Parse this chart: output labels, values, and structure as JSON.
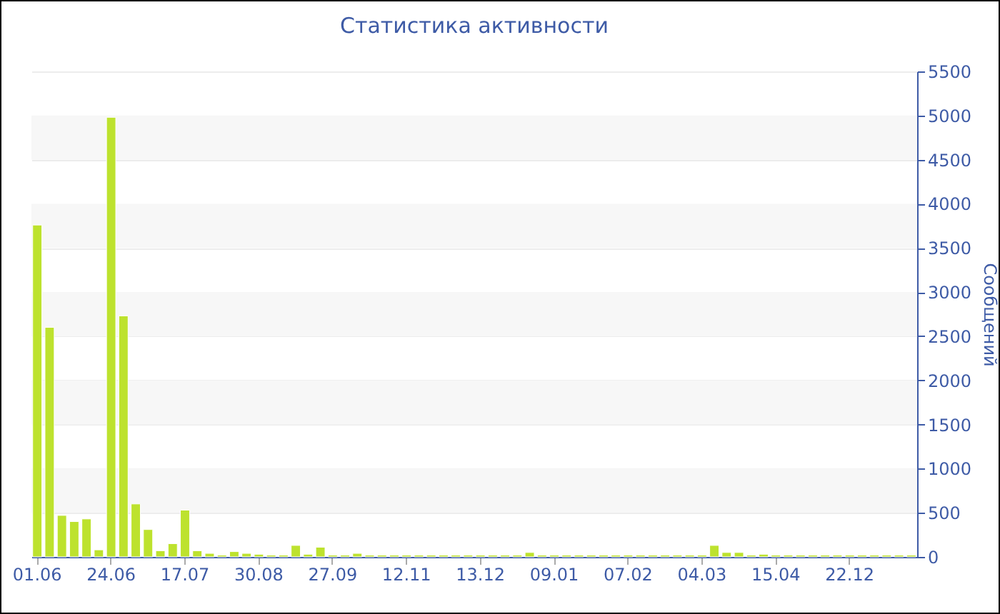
{
  "chart_data": {
    "type": "bar",
    "title": "Статистика активности",
    "ylabel": "Сообщений",
    "categories": [
      "01.06",
      null,
      null,
      null,
      null,
      null,
      "24.06",
      null,
      null,
      null,
      null,
      null,
      "17.07",
      null,
      null,
      null,
      null,
      null,
      "30.08",
      null,
      null,
      null,
      null,
      null,
      "27.09",
      null,
      null,
      null,
      null,
      null,
      "12.11",
      null,
      null,
      null,
      null,
      null,
      "13.12",
      null,
      null,
      null,
      null,
      null,
      "09.01",
      null,
      null,
      null,
      null,
      null,
      "07.02",
      null,
      null,
      null,
      null,
      null,
      "04.03",
      null,
      null,
      null,
      null,
      null,
      "15.04",
      null,
      null,
      null,
      null,
      null,
      "22.12",
      null,
      null,
      null,
      null,
      null
    ],
    "series": [
      {
        "color": "#bde22e",
        "values": [
          3760,
          2600,
          470,
          400,
          430,
          80,
          4980,
          2730,
          600,
          310,
          70,
          150,
          530,
          70,
          40,
          20,
          60,
          40,
          30,
          20,
          20,
          130,
          30,
          110,
          20,
          20,
          40,
          20,
          20,
          20,
          20,
          20,
          20,
          20,
          20,
          20,
          20,
          20,
          20,
          20,
          50,
          20,
          20,
          20,
          20,
          20,
          20,
          20,
          20,
          20,
          20,
          20,
          20,
          20,
          20,
          130,
          50,
          50,
          20,
          30,
          20,
          20,
          20,
          20,
          20,
          20,
          20,
          20,
          20,
          20,
          20,
          20
        ]
      }
    ],
    "ylim": [
      0,
      5500
    ],
    "yticks": [
      0,
      500,
      1000,
      1500,
      2000,
      2500,
      3000,
      3500,
      4000,
      4500,
      5000,
      5500
    ],
    "grid": "y"
  }
}
